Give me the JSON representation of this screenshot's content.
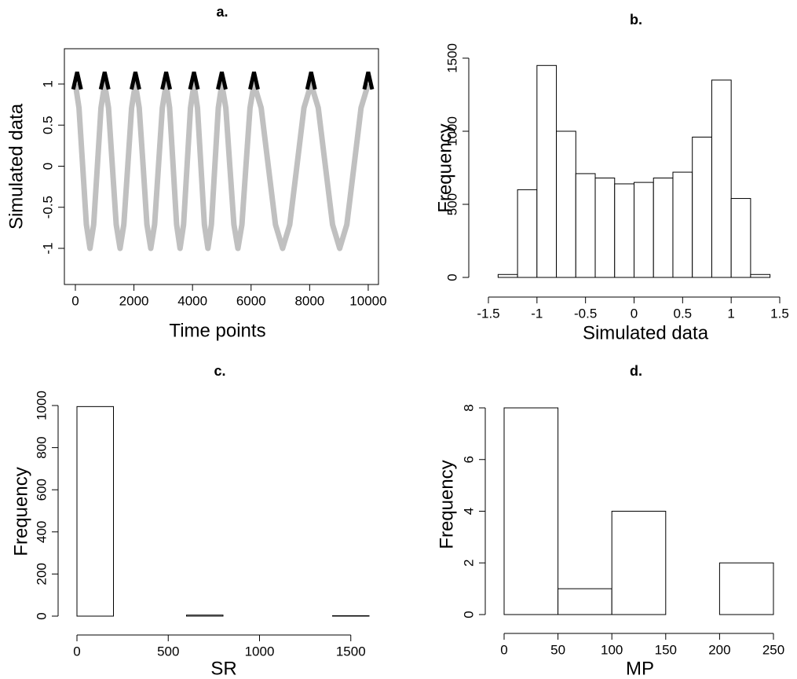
{
  "chart_data": [
    {
      "type": "line",
      "title": "a.",
      "x_label": "Time points",
      "y_label": "Simulated data",
      "color": "#c0c0c0",
      "x": [
        0,
        125,
        250,
        375,
        500,
        625,
        750,
        875,
        1000,
        1131,
        1263,
        1394,
        1525,
        1656,
        1788,
        1919,
        2050,
        2181,
        2313,
        2444,
        2575,
        2706,
        2838,
        2969,
        3100,
        3219,
        3338,
        3456,
        3575,
        3694,
        3813,
        3931,
        4050,
        4169,
        4288,
        4406,
        4525,
        4644,
        4763,
        4881,
        5000,
        5138,
        5275,
        5413,
        5550,
        5688,
        5825,
        5963,
        6100,
        6344,
        6588,
        6831,
        7075,
        7319,
        7563,
        7806,
        8050,
        8294,
        8538,
        8781,
        9025,
        9269,
        9513,
        9756,
        10000
      ],
      "values": [
        1,
        0.71,
        0,
        -0.71,
        -1,
        -0.71,
        0,
        0.71,
        1,
        0.71,
        0,
        -0.71,
        -1,
        -0.71,
        0,
        0.71,
        1,
        0.71,
        0,
        -0.71,
        -1,
        -0.71,
        0,
        0.71,
        1,
        0.71,
        0,
        -0.71,
        -1,
        -0.71,
        0,
        0.71,
        1,
        0.71,
        0,
        -0.71,
        -1,
        -0.71,
        0,
        0.71,
        1,
        0.71,
        0,
        -0.71,
        -1,
        -0.71,
        0,
        0.71,
        1,
        0.71,
        0,
        -0.71,
        -1,
        -0.71,
        0,
        0.71,
        1,
        0.71,
        0,
        -0.71,
        -1,
        -0.71,
        0,
        0.71,
        1
      ],
      "peaks": {
        "color": "#000000",
        "x": [
          60,
          1000,
          2050,
          3100,
          4050,
          5000,
          6100,
          8050,
          10000
        ],
        "values": [
          1.05,
          1.05,
          1.05,
          1.05,
          1.05,
          1.05,
          1.05,
          1.05,
          1.05
        ]
      },
      "xlim": [
        -375,
        10350
      ],
      "ylim": [
        -1.44,
        1.43
      ],
      "xticks": [
        0,
        2000,
        4000,
        6000,
        8000,
        10000
      ],
      "yticks": [
        -1,
        -0.5,
        0,
        0.5,
        1
      ]
    },
    {
      "type": "histogram",
      "title": "b.",
      "x_label": "Simulated data",
      "y_label": "Frequency",
      "bins": [
        -1.4,
        -1.2,
        -1,
        -0.8,
        -0.6,
        -0.4,
        -0.2,
        0,
        0.2,
        0.4,
        0.6,
        0.8,
        1,
        1.2,
        1.4
      ],
      "values": [
        20,
        600,
        1450,
        1000,
        710,
        680,
        640,
        650,
        680,
        720,
        960,
        1350,
        540,
        20
      ],
      "xlim": [
        -1.5,
        1.5
      ],
      "ylim": [
        0,
        1500
      ],
      "xticks": [
        -1.5,
        -1,
        -0.5,
        0,
        0.5,
        1,
        1.5
      ],
      "yticks": [
        0,
        500,
        1000,
        1500
      ]
    },
    {
      "type": "histogram",
      "title": "c.",
      "x_label": "SR",
      "y_label": "Frequency",
      "bins": [
        0,
        200,
        400,
        600,
        800,
        1000,
        1200,
        1400,
        1600
      ],
      "values": [
        995,
        0,
        0,
        5,
        0,
        0,
        0,
        2
      ],
      "xlim": [
        0,
        1600
      ],
      "ylim": [
        0,
        1000
      ],
      "xticks": [
        0,
        500,
        1000,
        1500
      ],
      "yticks": [
        0,
        200,
        400,
        600,
        800,
        1000
      ]
    },
    {
      "type": "histogram",
      "title": "d.",
      "x_label": "MP",
      "y_label": "Frequency",
      "bins": [
        0,
        50,
        100,
        150,
        200,
        250
      ],
      "values": [
        8,
        1,
        4,
        0,
        2
      ],
      "xlim": [
        0,
        250
      ],
      "ylim": [
        0,
        8
      ],
      "xticks": [
        0,
        50,
        100,
        150,
        200,
        250
      ],
      "yticks": [
        0,
        2,
        4,
        6,
        8
      ]
    }
  ]
}
